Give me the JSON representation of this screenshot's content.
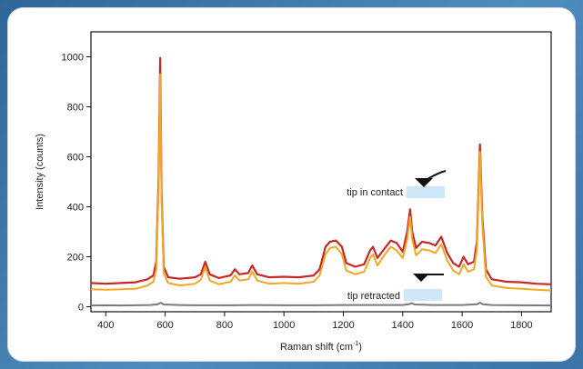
{
  "chart_data": {
    "type": "line",
    "title": "",
    "xlabel": "Raman shift (cm",
    "xlabel_sup": "-1",
    "xlabel_close": ")",
    "ylabel": "Intensity (counts)",
    "xlim": [
      350,
      1900
    ],
    "ylim": [
      -20,
      1100
    ],
    "x_ticks": [
      400,
      600,
      800,
      1000,
      1200,
      1400,
      1600,
      1800
    ],
    "y_ticks": [
      0,
      200,
      400,
      600,
      800,
      1000
    ],
    "grid": false,
    "colors": {
      "contact": "#c62828",
      "contact_orange": "#f5a623",
      "retracted": "#7a7a7a",
      "legend_box": "#cfe8f7"
    },
    "series": [
      {
        "id": "contact-red",
        "x": [
          350,
          400,
          450,
          500,
          540,
          560,
          570,
          578,
          583,
          588,
          595,
          610,
          650,
          700,
          720,
          735,
          750,
          780,
          820,
          835,
          850,
          880,
          893,
          910,
          950,
          1000,
          1050,
          1100,
          1120,
          1140,
          1155,
          1175,
          1195,
          1210,
          1240,
          1270,
          1290,
          1300,
          1315,
          1340,
          1360,
          1380,
          1400,
          1415,
          1425,
          1432,
          1445,
          1465,
          1490,
          1510,
          1530,
          1550,
          1570,
          1590,
          1605,
          1620,
          1640,
          1650,
          1660,
          1668,
          1680,
          1700,
          1750,
          1800,
          1850,
          1900
        ],
        "values": [
          95,
          92,
          95,
          98,
          110,
          125,
          180,
          520,
          995,
          450,
          160,
          118,
          112,
          118,
          130,
          180,
          130,
          115,
          125,
          150,
          130,
          135,
          165,
          130,
          118,
          120,
          118,
          125,
          150,
          240,
          260,
          265,
          240,
          175,
          160,
          170,
          225,
          240,
          195,
          235,
          265,
          255,
          220,
          300,
          390,
          300,
          235,
          260,
          255,
          245,
          280,
          215,
          175,
          160,
          200,
          170,
          180,
          260,
          650,
          360,
          150,
          110,
          100,
          98,
          92,
          90
        ]
      },
      {
        "id": "contact-orange",
        "x": [
          350,
          400,
          450,
          500,
          540,
          560,
          570,
          578,
          583,
          588,
          595,
          610,
          650,
          700,
          720,
          735,
          750,
          780,
          820,
          835,
          850,
          880,
          893,
          910,
          950,
          1000,
          1050,
          1100,
          1120,
          1140,
          1155,
          1175,
          1195,
          1210,
          1240,
          1270,
          1290,
          1300,
          1315,
          1340,
          1360,
          1380,
          1400,
          1415,
          1425,
          1432,
          1445,
          1465,
          1490,
          1510,
          1530,
          1550,
          1570,
          1590,
          1605,
          1620,
          1640,
          1650,
          1660,
          1668,
          1680,
          1700,
          1750,
          1800,
          1850,
          1900
        ],
        "values": [
          70,
          68,
          70,
          72,
          85,
          100,
          150,
          480,
          930,
          420,
          135,
          95,
          85,
          92,
          108,
          160,
          105,
          90,
          100,
          125,
          105,
          110,
          140,
          105,
          92,
          95,
          92,
          100,
          125,
          210,
          235,
          240,
          210,
          145,
          130,
          140,
          195,
          210,
          165,
          210,
          240,
          225,
          195,
          270,
          360,
          270,
          205,
          230,
          225,
          215,
          250,
          185,
          145,
          130,
          170,
          140,
          150,
          230,
          620,
          330,
          120,
          85,
          75,
          72,
          68,
          65
        ]
      },
      {
        "id": "retracted-gray",
        "x": [
          350,
          400,
          450,
          500,
          550,
          575,
          585,
          595,
          650,
          700,
          800,
          900,
          1000,
          1100,
          1200,
          1300,
          1400,
          1420,
          1430,
          1440,
          1500,
          1600,
          1650,
          1660,
          1670,
          1700,
          1800,
          1900
        ],
        "values": [
          5,
          6,
          5,
          6,
          7,
          10,
          16,
          9,
          7,
          6,
          6,
          7,
          6,
          6,
          7,
          7,
          7,
          10,
          14,
          9,
          7,
          7,
          10,
          16,
          10,
          7,
          6,
          5
        ]
      }
    ],
    "annotations": [
      {
        "id": "tip-in-contact",
        "text": "tip in contact"
      },
      {
        "id": "tip-retracted",
        "text": "tip retracted"
      }
    ]
  }
}
